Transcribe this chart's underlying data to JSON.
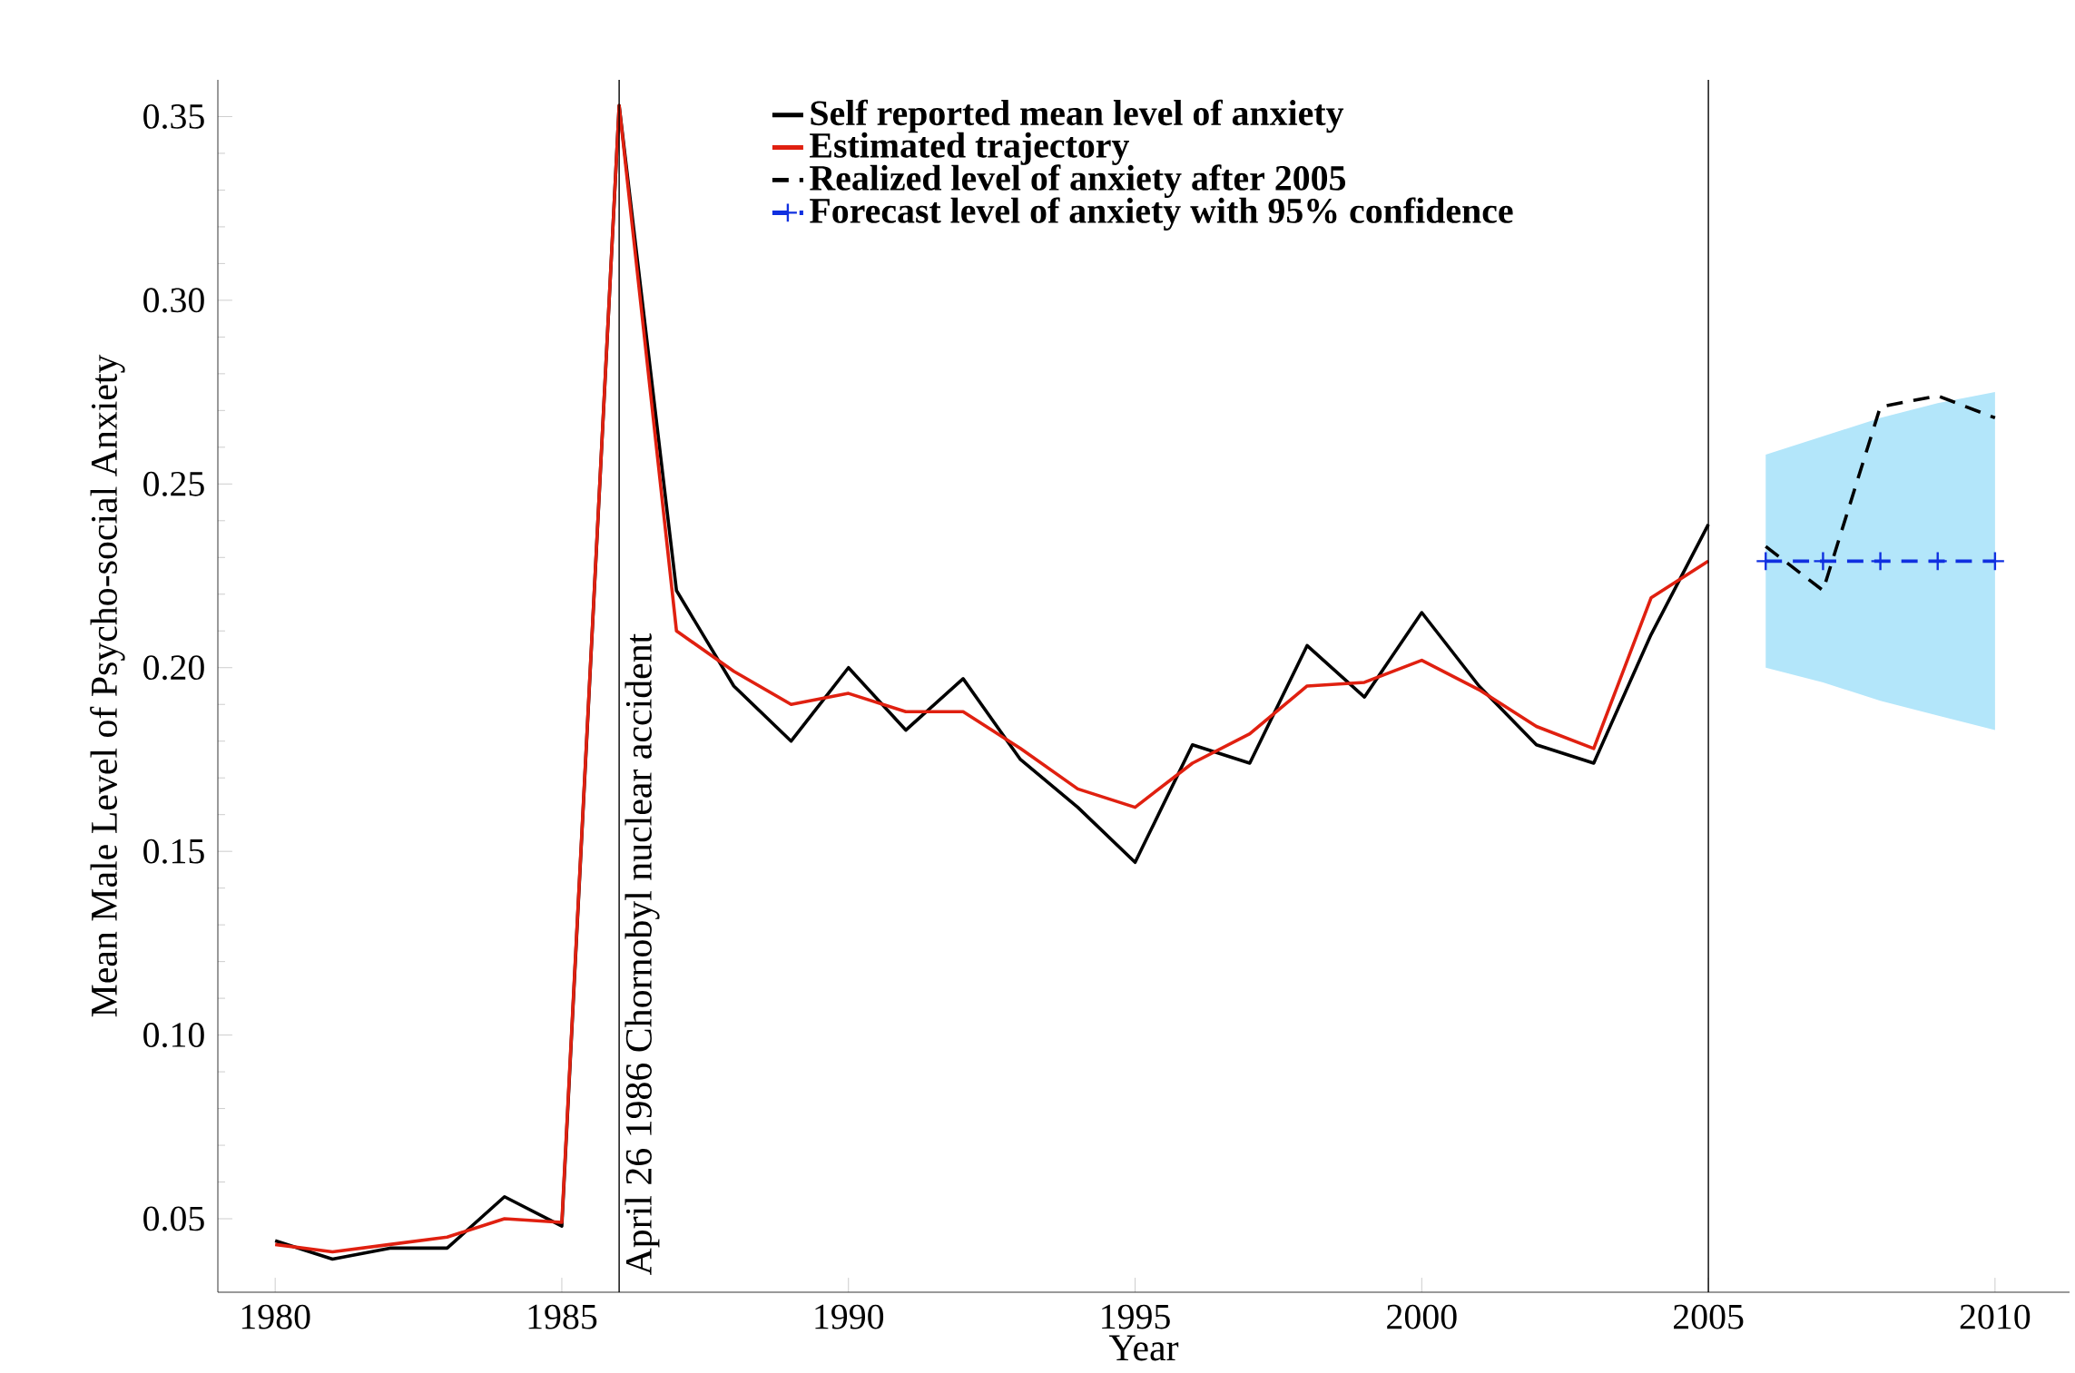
{
  "chart_data": {
    "type": "line",
    "xlabel": "Year",
    "ylabel": "Mean Male Level of Psycho-social Anxiety",
    "xlim": [
      1979,
      2011.3
    ],
    "ylim": [
      0.03,
      0.36
    ],
    "xticks": [
      1980,
      1985,
      1990,
      1995,
      2000,
      2005,
      2010
    ],
    "yticks": [
      0.05,
      {
        "value": 0.1,
        "label": "0.10"
      },
      0.15,
      {
        "value": 0.2,
        "label": "0.20"
      },
      0.25,
      {
        "value": 0.3,
        "label": "0.30"
      },
      0.35
    ],
    "legend": "top",
    "grid": false,
    "series": [
      {
        "name": "Self reported mean level of anxiety",
        "color": "#000000",
        "line_style": "solid",
        "x": [
          1980,
          1981,
          1982,
          1983,
          1984,
          1985,
          1986,
          1987,
          1988,
          1989,
          1990,
          1991,
          1992,
          1993,
          1994,
          1995,
          1996,
          1997,
          1998,
          1999,
          2000,
          2001,
          2002,
          2003,
          2004,
          2005
        ],
        "values": [
          0.044,
          0.039,
          0.042,
          0.042,
          0.056,
          0.048,
          0.353,
          0.221,
          0.195,
          0.18,
          0.2,
          0.183,
          0.197,
          0.175,
          0.162,
          0.147,
          0.179,
          0.174,
          0.206,
          0.192,
          0.215,
          0.195,
          0.179,
          0.174,
          0.209,
          0.239
        ]
      },
      {
        "name": "Estimated trajectory",
        "color": "#e02010",
        "line_style": "solid",
        "x": [
          1980,
          1981,
          1982,
          1983,
          1984,
          1985,
          1986,
          1987,
          1988,
          1989,
          1990,
          1991,
          1992,
          1993,
          1994,
          1995,
          1996,
          1997,
          1998,
          1999,
          2000,
          2001,
          2002,
          2003,
          2004,
          2005
        ],
        "values": [
          0.043,
          0.041,
          0.043,
          0.045,
          0.05,
          0.049,
          0.353,
          0.21,
          0.199,
          0.19,
          0.193,
          0.188,
          0.188,
          0.178,
          0.167,
          0.162,
          0.174,
          0.182,
          0.195,
          0.196,
          0.202,
          0.194,
          0.184,
          0.178,
          0.219,
          0.229
        ]
      },
      {
        "name": "Realized level of anxiety after 2005",
        "color": "#000000",
        "line_style": "dashed",
        "x": [
          2006,
          2007,
          2008,
          2009,
          2010
        ],
        "values": [
          0.233,
          0.221,
          0.271,
          0.274,
          0.268
        ]
      },
      {
        "name": "Forecast level of anxiety with 95% confidence",
        "color": "#1030e0",
        "line_style": "dashed",
        "marker": "cross",
        "x": [
          2006,
          2007,
          2008,
          2009,
          2010
        ],
        "values": [
          0.229,
          0.229,
          0.229,
          0.229,
          0.229
        ],
        "lower": [
          0.2,
          0.196,
          0.191,
          0.187,
          0.183
        ],
        "upper": [
          0.258,
          0.263,
          0.268,
          0.272,
          0.275
        ]
      }
    ],
    "ref_lines": [
      {
        "axis": "x",
        "value": 1986,
        "label": "April 26 1986  Chornobyl nuclear accident",
        "color": "#000000"
      },
      {
        "axis": "x",
        "value": 2005,
        "color": "#000000"
      }
    ]
  }
}
